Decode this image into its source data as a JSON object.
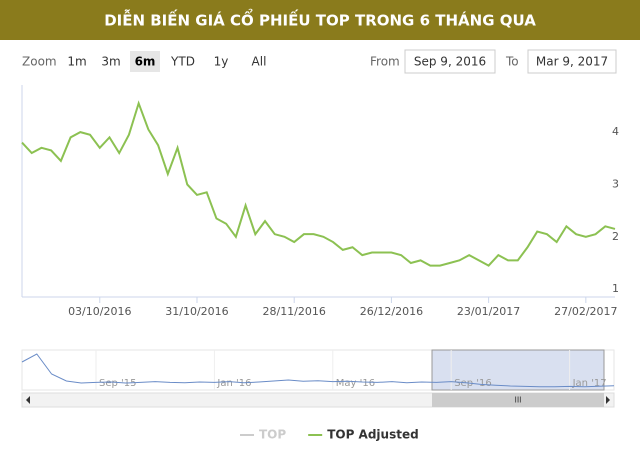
{
  "header": {
    "title": "DIỄN BIẾN GIÁ CỔ PHIẾU TOP TRONG 6 THÁNG QUA"
  },
  "range_selector": {
    "zoom_label": "Zoom",
    "buttons": [
      "1m",
      "3m",
      "6m",
      "YTD",
      "1y",
      "All"
    ],
    "selected": 2,
    "from_label": "From",
    "from": "Sep 9, 2016",
    "to_label": "To",
    "to": "Mar 9, 2017"
  },
  "chart_data": [
    {
      "type": "line",
      "categories": [
        null,
        null,
        null,
        null,
        null,
        null,
        null,
        null,
        "03/10/2016",
        null,
        null,
        null,
        null,
        null,
        null,
        null,
        null,
        null,
        "31/10/2016",
        null,
        null,
        null,
        null,
        null,
        null,
        null,
        null,
        null,
        "28/11/2016",
        null,
        null,
        null,
        null,
        null,
        null,
        null,
        null,
        null,
        "26/12/2016",
        null,
        null,
        null,
        null,
        null,
        null,
        null,
        null,
        null,
        "23/01/2017",
        null,
        null,
        null,
        null,
        null,
        null,
        null,
        null,
        null,
        "27/02/2017",
        null,
        null,
        null
      ],
      "series": [
        {
          "name": "TOP Adjusted",
          "color": "#8cc152",
          "values": [
            3.8,
            3.6,
            3.7,
            3.65,
            3.45,
            3.9,
            4.0,
            3.95,
            3.7,
            3.9,
            3.6,
            3.95,
            4.55,
            4.05,
            3.75,
            3.2,
            3.7,
            3.0,
            2.8,
            2.85,
            2.35,
            2.25,
            2.0,
            2.6,
            2.05,
            2.3,
            2.05,
            2.0,
            1.9,
            2.05,
            2.05,
            2.0,
            1.9,
            1.75,
            1.8,
            1.65,
            1.7,
            1.7,
            1.7,
            1.65,
            1.5,
            1.55,
            1.45,
            1.45,
            1.5,
            1.55,
            1.65,
            1.55,
            1.45,
            1.65,
            1.55,
            1.55,
            1.8,
            2.1,
            2.05,
            1.9,
            2.2,
            2.05,
            2.0,
            2.05,
            2.2,
            2.15
          ]
        },
        {
          "name": "TOP",
          "color": "#cccccc",
          "visible": false
        }
      ],
      "ylim": [
        0.85,
        4.9
      ],
      "yticks": [
        1,
        2,
        3,
        4
      ],
      "grid": false
    },
    {
      "type": "line",
      "categories": [
        null,
        null,
        null,
        null,
        null,
        "Sep '15",
        null,
        null,
        null,
        null,
        null,
        null,
        null,
        "Jan '16",
        null,
        null,
        null,
        null,
        null,
        null,
        null,
        "May '16",
        null,
        null,
        null,
        null,
        null,
        null,
        null,
        "Sep '16",
        null,
        null,
        null,
        null,
        null,
        null,
        null,
        "Jan '17",
        null,
        null,
        null
      ],
      "values": [
        14,
        18,
        8,
        4.5,
        3.5,
        3.8,
        4,
        3.5,
        3.8,
        4.2,
        3.8,
        3.6,
        4,
        3.8,
        4.2,
        3.6,
        4,
        4.5,
        5,
        4.4,
        4.6,
        4.2,
        4.4,
        4,
        3.8,
        4.2,
        3.6,
        4,
        3.8,
        4.2,
        3.6,
        2.8,
        2.4,
        2,
        1.8,
        1.6,
        1.6,
        1.8,
        1.6,
        1.9,
        2.1
      ],
      "color": "#6a8cc7",
      "ylim": [
        0,
        20
      ]
    }
  ]
}
